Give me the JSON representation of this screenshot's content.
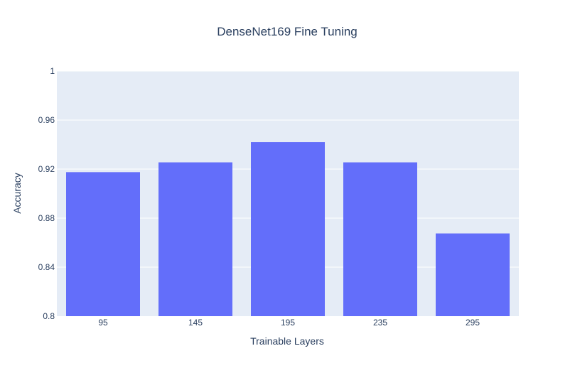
{
  "chart_data": {
    "type": "bar",
    "title": "DenseNet169 Fine Tuning",
    "xlabel": "Trainable Layers",
    "ylabel": "Accuracy",
    "categories": [
      "95",
      "145",
      "195",
      "235",
      "295"
    ],
    "values": [
      0.9175,
      0.9255,
      0.942,
      0.9255,
      0.8675
    ],
    "ylim": [
      0.8,
      1.0
    ],
    "yticks": [
      "0.8",
      "0.84",
      "0.88",
      "0.92",
      "0.96",
      "1"
    ],
    "grid": true,
    "colors": {
      "bar": "#636efa",
      "plot_bg": "#e5ecf6",
      "grid": "#ffffff",
      "text": "#2a3f5f"
    }
  }
}
